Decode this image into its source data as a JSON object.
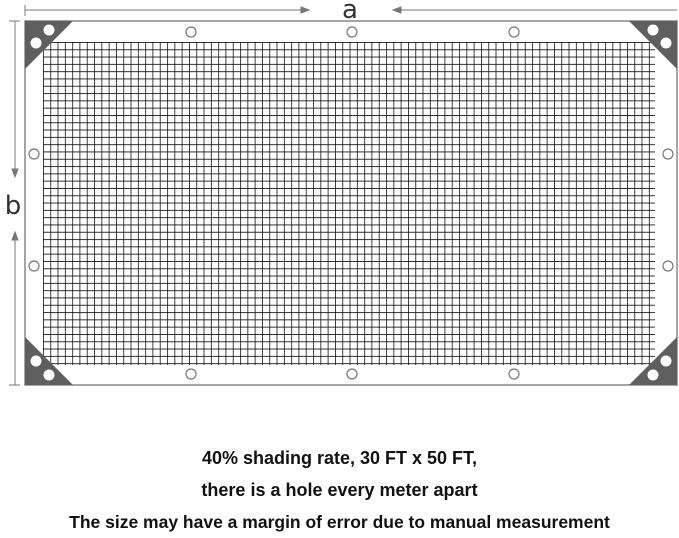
{
  "dimensions": {
    "width_label": "a",
    "height_label": "b"
  },
  "colors": {
    "corner": "#5f5f5f",
    "frame": "#888888",
    "mesh": "#111111"
  },
  "caption": {
    "line1": "40% shading  rate, 30 FT x 50 FT,",
    "line2": "there is a hole every meter apart",
    "line3": "The size  may  have a margin of error due to manual measurement"
  }
}
